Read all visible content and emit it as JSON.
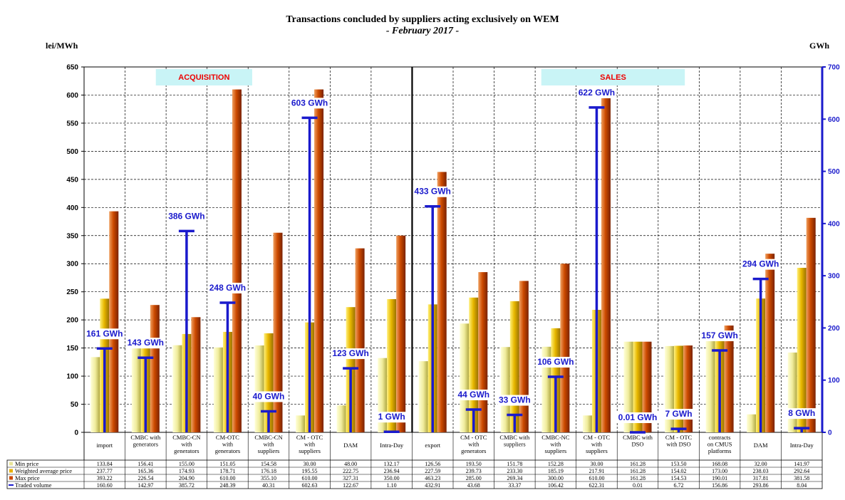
{
  "chart_data": {
    "type": "bar",
    "title": "Transactions concluded by suppliers acting exclusively on WEM",
    "subtitle": "- February 2017 -",
    "ylabel_left": "lei/MWh",
    "ylabel_right": "GWh",
    "ylim_left": [
      0,
      650
    ],
    "yticks_left": [
      0,
      50,
      100,
      150,
      200,
      250,
      300,
      350,
      400,
      450,
      500,
      550,
      600,
      650
    ],
    "ylim_right": [
      0,
      700
    ],
    "yticks_right": [
      0,
      100,
      200,
      300,
      400,
      500,
      600,
      700
    ],
    "grid": true,
    "sections": [
      {
        "label": "ACQUISITION",
        "category_count": 8
      },
      {
        "label": "SALES",
        "category_count": 10
      }
    ],
    "categories": [
      "import",
      "CMBC with generators",
      "CMBC-CN with generators",
      "CM-OTC with generators",
      "CMBC-CN with suppliers",
      "CM - OTC with suppliers",
      "DAM",
      "Intra-Day",
      "export",
      "CM - OTC with generators",
      "CMBC with suppliers",
      "CMBC-NC with suppliers",
      "CM - OTC with suppliers",
      "CMBC with DSO",
      "CM - OTC with DSO",
      "contracts on CMUS platforms",
      "DAM",
      "Intra-Day"
    ],
    "series": [
      {
        "name": "Min price",
        "kind": "bar",
        "color": "#e8e49a",
        "values": [
          133.84,
          156.41,
          155.0,
          151.05,
          154.58,
          30.0,
          48.0,
          132.17,
          126.56,
          193.5,
          151.78,
          152.28,
          30.0,
          161.28,
          153.5,
          168.08,
          32.0,
          141.97
        ],
        "display": [
          "133.84",
          "156.41",
          "155.00",
          "151.05",
          "154.58",
          "30.00",
          "48.00",
          "132.17",
          "126.56",
          "193.50",
          "151.78",
          "152.28",
          "30.00",
          "161.28",
          "153.50",
          "168.08",
          "32.00",
          "141.97"
        ]
      },
      {
        "name": "Weighted average price",
        "kind": "bar",
        "color": "#e8b000",
        "values": [
          237.77,
          165.36,
          174.93,
          178.71,
          176.18,
          195.55,
          222.75,
          236.94,
          227.59,
          239.73,
          233.3,
          185.19,
          217.91,
          161.28,
          154.02,
          173.0,
          238.03,
          292.64
        ],
        "display": [
          "237.77",
          "165.36",
          "174.93",
          "178.71",
          "176.18",
          "195.55",
          "222.75",
          "236.94",
          "227.59",
          "239.73",
          "233.30",
          "185.19",
          "217.91",
          "161.28",
          "154.02",
          "173.00",
          "238.03",
          "292.64"
        ]
      },
      {
        "name": "Max price",
        "kind": "bar",
        "color": "#cc4a00",
        "values": [
          393.22,
          226.54,
          204.9,
          610.0,
          355.1,
          610.0,
          327.31,
          350.0,
          463.23,
          285.0,
          269.34,
          300.0,
          610.0,
          161.28,
          154.53,
          190.01,
          317.81,
          381.58
        ],
        "display": [
          "393.22",
          "226.54",
          "204.90",
          "610.00",
          "355.10",
          "610.00",
          "327.31",
          "350.00",
          "463.23",
          "285.00",
          "269.34",
          "300.00",
          "610.00",
          "161.28",
          "154.53",
          "190.01",
          "317.81",
          "381.58"
        ]
      },
      {
        "name": "Traded volume",
        "kind": "errorbar",
        "axis": "right",
        "color": "#1a1acc",
        "values": [
          160.6,
          142.97,
          385.72,
          248.39,
          40.31,
          602.63,
          122.67,
          1.1,
          432.91,
          43.68,
          33.37,
          106.42,
          622.31,
          0.01,
          6.72,
          156.86,
          293.86,
          8.04
        ],
        "display": [
          "160.60",
          "142.97",
          "385.72",
          "248.39",
          "40.31",
          "602.63",
          "122.67",
          "1.10",
          "432.91",
          "43.68",
          "33.37",
          "106.42",
          "622.31",
          "0.01",
          "6.72",
          "156.86",
          "293.86",
          "8.04"
        ],
        "labels": [
          "161 GWh",
          "143 GWh",
          "386 GWh",
          "248 GWh",
          "40 GWh",
          "603 GWh",
          "123 GWh",
          "1 GWh",
          "433 GWh",
          "44 GWh",
          "33 GWh",
          "106 GWh",
          "622 GWh",
          "0.01 GWh",
          "7 GWh",
          "157 GWh",
          "294 GWh",
          "8 GWh"
        ]
      }
    ]
  }
}
